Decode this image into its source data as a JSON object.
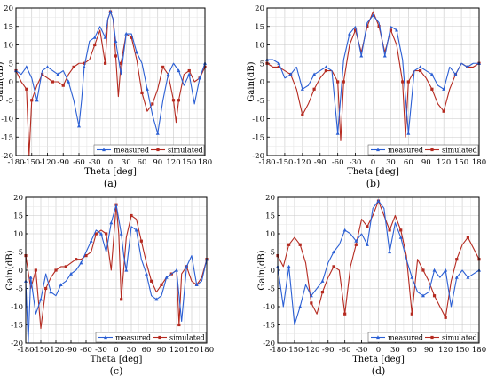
{
  "chart_data": [
    {
      "type": "line",
      "caption": "(a)",
      "xlabel": "Theta [deg]",
      "ylabel": "Gain(dB)",
      "xlim": [
        -180,
        180
      ],
      "ylim": [
        -20,
        20
      ],
      "xticks": [
        -180,
        -150,
        -120,
        -90,
        -60,
        -30,
        0,
        30,
        60,
        90,
        120,
        150,
        180
      ],
      "yticks": [
        -20,
        -15,
        -10,
        -5,
        0,
        5,
        10,
        15,
        20
      ],
      "grid": true,
      "legend_position": "bottom-right",
      "series": [
        {
          "name": "measured",
          "color": "#2b5fd4",
          "marker": "triangle",
          "x": [
            -180,
            -170,
            -160,
            -150,
            -140,
            -130,
            -120,
            -110,
            -100,
            -90,
            -80,
            -70,
            -60,
            -55,
            -50,
            -40,
            -30,
            -20,
            -10,
            -5,
            0,
            5,
            10,
            20,
            30,
            40,
            50,
            60,
            70,
            80,
            90,
            100,
            110,
            120,
            130,
            140,
            150,
            160,
            170,
            180
          ],
          "y": [
            3,
            2,
            4,
            1,
            -5,
            3,
            4,
            3,
            2,
            3,
            0,
            -5,
            -12,
            -5,
            4,
            11,
            12,
            15,
            12,
            17,
            19,
            17,
            11,
            2,
            13,
            13,
            8,
            5,
            -2,
            -9,
            -14,
            -5,
            2,
            5,
            3,
            -1,
            2,
            -6,
            1,
            5
          ]
        },
        {
          "name": "simulated",
          "color": "#b52a20",
          "marker": "square",
          "x": [
            -180,
            -170,
            -160,
            -155,
            -150,
            -140,
            -130,
            -120,
            -110,
            -100,
            -90,
            -80,
            -70,
            -60,
            -50,
            -40,
            -30,
            -20,
            -10,
            -5,
            0,
            5,
            10,
            15,
            20,
            30,
            40,
            50,
            60,
            70,
            80,
            90,
            100,
            110,
            120,
            125,
            130,
            140,
            150,
            160,
            170,
            180
          ],
          "y": [
            3,
            0,
            -2,
            -20,
            -5,
            -1,
            2,
            1,
            0,
            0,
            -1,
            2,
            4,
            5,
            5,
            6,
            10,
            14,
            5,
            17,
            19,
            17,
            7,
            -4,
            5,
            13,
            12,
            6,
            -3,
            -8,
            -6,
            -2,
            4,
            2,
            -5,
            -11,
            -5,
            2,
            3,
            0,
            1,
            4
          ]
        }
      ]
    },
    {
      "type": "line",
      "caption": "(b)",
      "xlabel": "Theta [deg]",
      "ylabel": "Gain(dB)",
      "xlim": [
        -180,
        180
      ],
      "ylim": [
        -20,
        20
      ],
      "xticks": [
        -180,
        -150,
        -120,
        -90,
        -60,
        -30,
        0,
        30,
        60,
        90,
        120,
        150,
        180
      ],
      "yticks": [
        -20,
        -15,
        -10,
        -5,
        0,
        5,
        10,
        15,
        20
      ],
      "grid": true,
      "legend_position": "bottom-right",
      "series": [
        {
          "name": "measured",
          "color": "#2b5fd4",
          "marker": "triangle",
          "x": [
            -180,
            -170,
            -160,
            -150,
            -140,
            -130,
            -120,
            -110,
            -100,
            -90,
            -80,
            -70,
            -60,
            -50,
            -40,
            -30,
            -20,
            -10,
            0,
            10,
            20,
            30,
            40,
            50,
            60,
            70,
            80,
            90,
            100,
            110,
            120,
            130,
            140,
            150,
            160,
            170,
            180
          ],
          "y": [
            6,
            6,
            5,
            1,
            2,
            4,
            -2,
            -1,
            2,
            3,
            4,
            3,
            -14,
            6,
            13,
            15,
            7,
            16,
            18,
            16,
            7,
            15,
            14,
            6,
            -14,
            3,
            4,
            3,
            2,
            -1,
            -2,
            4,
            2,
            5,
            4,
            5,
            5
          ]
        },
        {
          "name": "simulated",
          "color": "#b52a20",
          "marker": "square",
          "x": [
            -180,
            -170,
            -160,
            -150,
            -140,
            -130,
            -120,
            -110,
            -100,
            -90,
            -80,
            -70,
            -60,
            -55,
            -50,
            -40,
            -30,
            -20,
            -10,
            0,
            10,
            20,
            30,
            40,
            50,
            55,
            60,
            70,
            80,
            90,
            100,
            110,
            120,
            130,
            140,
            150,
            160,
            170,
            180
          ],
          "y": [
            5,
            4,
            4,
            3,
            2,
            -2,
            -9,
            -6,
            -2,
            1,
            3,
            3,
            0,
            -16,
            0,
            10,
            14,
            8,
            15,
            19,
            15,
            8,
            14,
            10,
            0,
            -15,
            0,
            3,
            3,
            1,
            -2,
            -6,
            -8,
            -2,
            2,
            5,
            4,
            4,
            5
          ]
        }
      ]
    },
    {
      "type": "line",
      "caption": "(c)",
      "xlabel": "Theta [deg]",
      "ylabel": "Gain(dB)",
      "xlim": [
        -180,
        180
      ],
      "ylim": [
        -20,
        20
      ],
      "xticks": [
        -180,
        -150,
        -120,
        -90,
        -60,
        -30,
        0,
        30,
        60,
        90,
        120,
        150,
        180
      ],
      "yticks": [
        -20,
        -15,
        -10,
        -5,
        0,
        5,
        10,
        15,
        20
      ],
      "grid": true,
      "legend_position": "bottom-right",
      "series": [
        {
          "name": "measured",
          "color": "#2b5fd4",
          "marker": "triangle",
          "x": [
            -180,
            -175,
            -170,
            -160,
            -150,
            -140,
            -130,
            -120,
            -110,
            -100,
            -90,
            -80,
            -70,
            -60,
            -50,
            -40,
            -30,
            -20,
            -10,
            0,
            10,
            15,
            20,
            30,
            40,
            50,
            60,
            70,
            80,
            90,
            100,
            110,
            120,
            130,
            140,
            150,
            160,
            170,
            180
          ],
          "y": [
            -3,
            -20,
            -2,
            -12,
            -8,
            -1,
            -6,
            -7,
            -4,
            -3,
            -1,
            0,
            2,
            5,
            8,
            11,
            10,
            5,
            13,
            18,
            10,
            4,
            0,
            12,
            11,
            3,
            -1,
            -7,
            -8,
            -7,
            -2,
            -1,
            0,
            -14,
            1,
            4,
            -4,
            -3,
            3
          ]
        },
        {
          "name": "simulated",
          "color": "#b52a20",
          "marker": "square",
          "x": [
            -180,
            -170,
            -160,
            -150,
            -140,
            -130,
            -120,
            -110,
            -100,
            -90,
            -80,
            -70,
            -60,
            -50,
            -40,
            -30,
            -20,
            -10,
            0,
            5,
            10,
            20,
            30,
            40,
            50,
            60,
            70,
            80,
            90,
            100,
            110,
            120,
            125,
            130,
            140,
            150,
            160,
            170,
            180
          ],
          "y": [
            4,
            -5,
            0,
            -16,
            -5,
            -2,
            0,
            1,
            1,
            2,
            3,
            3,
            4,
            5,
            10,
            11,
            10,
            0,
            18,
            10,
            -8,
            9,
            15,
            14,
            8,
            2,
            -3,
            -6,
            -4,
            -2,
            -1,
            0,
            -15,
            -1,
            1,
            -3,
            -4,
            -2,
            3
          ]
        }
      ]
    },
    {
      "type": "line",
      "caption": "(d)",
      "xlabel": "Theta [deg]",
      "ylabel": "Gain(dB)",
      "xlim": [
        -180,
        180
      ],
      "ylim": [
        -20,
        20
      ],
      "xticks": [
        -180,
        -150,
        -120,
        -90,
        -60,
        -30,
        0,
        30,
        60,
        90,
        120,
        150,
        180
      ],
      "yticks": [
        -20,
        -15,
        -10,
        -5,
        0,
        5,
        10,
        15,
        20
      ],
      "grid": true,
      "legend_position": "bottom-right",
      "series": [
        {
          "name": "measured",
          "color": "#2b5fd4",
          "marker": "triangle",
          "x": [
            -180,
            -170,
            -160,
            -150,
            -140,
            -130,
            -120,
            -110,
            -100,
            -90,
            -80,
            -70,
            -60,
            -50,
            -40,
            -30,
            -20,
            -10,
            0,
            10,
            20,
            30,
            40,
            50,
            60,
            70,
            80,
            90,
            100,
            110,
            120,
            130,
            140,
            150,
            160,
            170,
            180
          ],
          "y": [
            1,
            -10,
            1,
            -15,
            -10,
            -4,
            -7,
            -5,
            -3,
            2,
            5,
            7,
            11,
            10,
            8,
            10,
            7,
            17,
            19,
            17,
            5,
            13,
            9,
            3,
            -2,
            -6,
            -7,
            -6,
            0,
            -2,
            0,
            -10,
            -2,
            0,
            -2,
            -1,
            0
          ]
        },
        {
          "name": "simulated",
          "color": "#b52a20",
          "marker": "square",
          "x": [
            -180,
            -170,
            -160,
            -150,
            -140,
            -130,
            -120,
            -110,
            -100,
            -90,
            -80,
            -70,
            -60,
            -50,
            -40,
            -30,
            -20,
            -10,
            0,
            10,
            20,
            30,
            40,
            50,
            60,
            70,
            80,
            90,
            100,
            110,
            120,
            130,
            140,
            150,
            160,
            170,
            180
          ],
          "y": [
            4,
            1,
            7,
            9,
            7,
            2,
            -9,
            -12,
            -6,
            -2,
            1,
            0,
            -12,
            1,
            7,
            14,
            12,
            15,
            19,
            15,
            11,
            15,
            11,
            4,
            -12,
            3,
            0,
            -3,
            -7,
            -10,
            -13,
            -3,
            3,
            7,
            9,
            6,
            3
          ]
        }
      ]
    }
  ]
}
